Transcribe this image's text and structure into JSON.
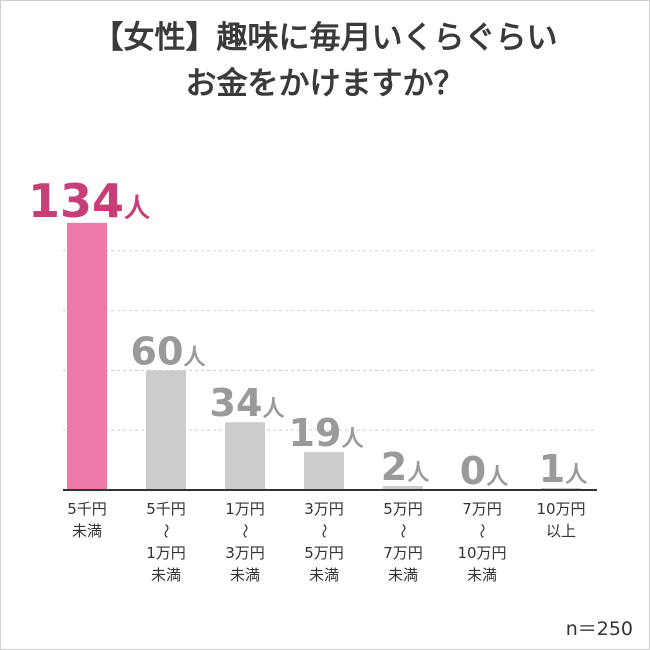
{
  "chart_data": {
    "type": "bar",
    "title_lines": [
      "【女性】趣味に毎月いくらぐらい",
      "お金をかけますか？"
    ],
    "unit": "人",
    "categories": [
      [
        "5千円",
        "未満"
      ],
      [
        "5千円",
        "〜",
        "1万円",
        "未満"
      ],
      [
        "1万円",
        "〜",
        "3万円",
        "未満"
      ],
      [
        "3万円",
        "〜",
        "5万円",
        "未満"
      ],
      [
        "5万円",
        "〜",
        "7万円",
        "未満"
      ],
      [
        "7万円",
        "〜",
        "10万円",
        "未満"
      ],
      [
        "10万円",
        "以上"
      ]
    ],
    "values": [
      134,
      60,
      34,
      19,
      2,
      0,
      1
    ],
    "ylim": [
      0,
      150
    ],
    "grid": true,
    "highlight_index": 0,
    "colors": {
      "highlight_bar": "#ee78a8",
      "highlight_label": "#c63f78",
      "bar": "#cccccc",
      "label": "#9a9a9a",
      "grid": "#d0d0d0",
      "axis": "#333333"
    },
    "sample_size": "n＝250"
  }
}
